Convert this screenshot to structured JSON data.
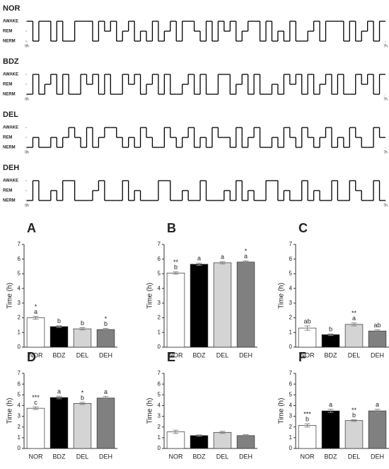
{
  "chart_data": [
    {
      "type": "step",
      "title": "NOR",
      "ylim": [
        0,
        2
      ],
      "yticks": [
        {
          "value": 2,
          "label": "AWAKE"
        },
        {
          "value": 1,
          "label": "REM"
        },
        {
          "value": 0,
          "label": "NERM"
        }
      ],
      "xlim": [
        0,
        7
      ],
      "xticks": [
        {
          "value": 0,
          "label": "0h"
        },
        {
          "value": 7,
          "label": "7h"
        }
      ],
      "color": "#000000",
      "values": [
        2,
        0,
        2,
        2,
        0,
        2,
        0,
        0,
        2,
        2,
        2,
        0,
        2,
        1,
        2,
        0,
        1,
        2,
        0,
        1,
        0,
        2,
        0,
        1,
        2,
        0,
        2,
        2,
        1,
        0,
        2,
        0,
        2,
        1,
        2,
        0,
        1,
        2,
        2,
        0,
        2,
        0,
        1,
        0,
        2,
        0,
        0,
        1,
        2,
        0,
        2,
        2,
        2,
        0,
        2,
        0,
        1,
        2,
        0,
        2
      ]
    },
    {
      "type": "step",
      "title": "BDZ",
      "ylim": [
        0,
        2
      ],
      "yticks": [
        {
          "value": 2,
          "label": "AWAKE"
        },
        {
          "value": 1,
          "label": "REM"
        },
        {
          "value": 0,
          "label": "NERM"
        }
      ],
      "xlim": [
        0,
        7
      ],
      "xticks": [
        {
          "value": 0,
          "label": "0h"
        },
        {
          "value": 7,
          "label": "7h"
        }
      ],
      "color": "#000000",
      "values": [
        0,
        2,
        0,
        1,
        2,
        0,
        2,
        0,
        0,
        2,
        1,
        2,
        0,
        2,
        0,
        0,
        2,
        1,
        2,
        0,
        1,
        2,
        0,
        2,
        0,
        0,
        1,
        2,
        0,
        2,
        0,
        0,
        2,
        2,
        0,
        1,
        2,
        0,
        2,
        0,
        0,
        1,
        0,
        2,
        1,
        2,
        0,
        2,
        0,
        1,
        2,
        0,
        2,
        0,
        0,
        2,
        1,
        2,
        0,
        2
      ]
    },
    {
      "type": "step",
      "title": "DEL",
      "ylim": [
        0,
        2
      ],
      "yticks": [
        {
          "value": 2,
          "label": "AWAKE"
        },
        {
          "value": 1,
          "label": "REM"
        },
        {
          "value": 0,
          "label": "NERM"
        }
      ],
      "xlim": [
        0,
        7
      ],
      "xticks": [
        {
          "value": 0,
          "label": "0h"
        },
        {
          "value": 7,
          "label": "7h"
        }
      ],
      "color": "#000000",
      "values": [
        0,
        1,
        0,
        0,
        1,
        0,
        1,
        2,
        1,
        0,
        2,
        0,
        1,
        2,
        2,
        1,
        0,
        1,
        0,
        2,
        1,
        0,
        0,
        2,
        1,
        0,
        1,
        2,
        0,
        1,
        0,
        2,
        1,
        1,
        0,
        2,
        0,
        1,
        2,
        0,
        0,
        1,
        0,
        2,
        1,
        0,
        2,
        1,
        0,
        1,
        2,
        0,
        1,
        0,
        2,
        1,
        0,
        0,
        2,
        1
      ]
    },
    {
      "type": "step",
      "title": "DEH",
      "ylim": [
        0,
        2
      ],
      "yticks": [
        {
          "value": 2,
          "label": "AWAKE"
        },
        {
          "value": 1,
          "label": "REM"
        },
        {
          "value": 0,
          "label": "NERM"
        }
      ],
      "xlim": [
        0,
        7
      ],
      "xticks": [
        {
          "value": 0,
          "label": "0h"
        },
        {
          "value": 7,
          "label": "7h"
        }
      ],
      "color": "#000000",
      "values": [
        0,
        2,
        0,
        0,
        1,
        0,
        2,
        2,
        0,
        0,
        0,
        1,
        2,
        0,
        0,
        0,
        2,
        0,
        1,
        0,
        0,
        0,
        2,
        2,
        0,
        0,
        1,
        0,
        0,
        2,
        0,
        0,
        0,
        1,
        0,
        2,
        0,
        1,
        0,
        0,
        2,
        2,
        0,
        1,
        0,
        0,
        2,
        0,
        1,
        0,
        0,
        2,
        0,
        0,
        2,
        1,
        0,
        0,
        2,
        0
      ]
    },
    {
      "type": "bar",
      "title": "A",
      "ylabel": "Time (h)",
      "categories": [
        "NOR",
        "BDZ",
        "DEL",
        "DEH"
      ],
      "values": [
        2.0,
        1.4,
        1.25,
        1.2
      ],
      "errors": [
        0.1,
        0.06,
        0.08,
        0.08
      ],
      "colors": [
        "#ffffff",
        "#000000",
        "#d4d4d4",
        "#808080"
      ],
      "letters": [
        "a",
        "b",
        "b",
        "b"
      ],
      "stars": [
        "*",
        null,
        null,
        "*"
      ],
      "ylim": [
        0,
        7
      ],
      "yticks": [
        0,
        1,
        2,
        3,
        4,
        5,
        6,
        7
      ]
    },
    {
      "type": "bar",
      "title": "B",
      "ylabel": "Time (h)",
      "categories": [
        "NOR",
        "BDZ",
        "DEL",
        "DEH"
      ],
      "values": [
        5.05,
        5.65,
        5.75,
        5.8
      ],
      "errors": [
        0.08,
        0.08,
        0.08,
        0.08
      ],
      "colors": [
        "#ffffff",
        "#000000",
        "#d4d4d4",
        "#808080"
      ],
      "letters": [
        "b",
        "a",
        "a",
        "a"
      ],
      "stars": [
        "**",
        null,
        null,
        "*"
      ],
      "ylim": [
        0,
        7
      ],
      "yticks": [
        0,
        1,
        2,
        3,
        4,
        5,
        6,
        7
      ]
    },
    {
      "type": "bar",
      "title": "C",
      "ylabel": "Time (h)",
      "categories": [
        "NOR",
        "BDZ",
        "DEL",
        "DEH"
      ],
      "values": [
        1.3,
        0.85,
        1.55,
        1.1
      ],
      "errors": [
        0.15,
        0.06,
        0.1,
        0.08
      ],
      "colors": [
        "#ffffff",
        "#000000",
        "#d4d4d4",
        "#808080"
      ],
      "letters": [
        "ab",
        "b",
        "a",
        "ab"
      ],
      "stars": [
        null,
        null,
        "**",
        null
      ],
      "ylim": [
        0,
        7
      ],
      "yticks": [
        0,
        1,
        2,
        3,
        4,
        5,
        6,
        7
      ]
    },
    {
      "type": "bar",
      "title": "D",
      "ylabel": "Time (h)",
      "categories": [
        "NOR",
        "BDZ",
        "DEL",
        "DEH"
      ],
      "values": [
        3.75,
        4.75,
        4.2,
        4.7
      ],
      "errors": [
        0.12,
        0.12,
        0.1,
        0.15
      ],
      "colors": [
        "#ffffff",
        "#000000",
        "#d4d4d4",
        "#808080"
      ],
      "letters": [
        "c",
        "a",
        "b",
        "a"
      ],
      "stars": [
        "***",
        null,
        "*",
        null
      ],
      "ylim": [
        0,
        7
      ],
      "yticks": [
        0,
        1,
        2,
        3,
        4,
        5,
        6,
        7
      ]
    },
    {
      "type": "bar",
      "title": "E",
      "ylabel": "Time (h)",
      "categories": [
        "NOR",
        "BDZ",
        "DEL",
        "DEH"
      ],
      "values": [
        1.55,
        1.2,
        1.5,
        1.2
      ],
      "errors": [
        0.15,
        0.06,
        0.1,
        0.08
      ],
      "colors": [
        "#ffffff",
        "#000000",
        "#d4d4d4",
        "#808080"
      ],
      "ylim": [
        0,
        7
      ],
      "yticks": [
        0,
        1,
        2,
        3,
        4,
        5,
        6,
        7
      ]
    },
    {
      "type": "bar",
      "title": "F",
      "ylabel": "Time (h)",
      "categories": [
        "NOR",
        "BDZ",
        "DEL",
        "DEH"
      ],
      "values": [
        2.15,
        3.5,
        2.6,
        3.5
      ],
      "errors": [
        0.15,
        0.15,
        0.08,
        0.15
      ],
      "colors": [
        "#ffffff",
        "#000000",
        "#d4d4d4",
        "#808080"
      ],
      "letters": [
        "b",
        "a",
        "b",
        "a"
      ],
      "stars": [
        "***",
        null,
        "**",
        null
      ],
      "ylim": [
        0,
        7
      ],
      "yticks": [
        0,
        1,
        2,
        3,
        4,
        5,
        6,
        7
      ]
    }
  ]
}
